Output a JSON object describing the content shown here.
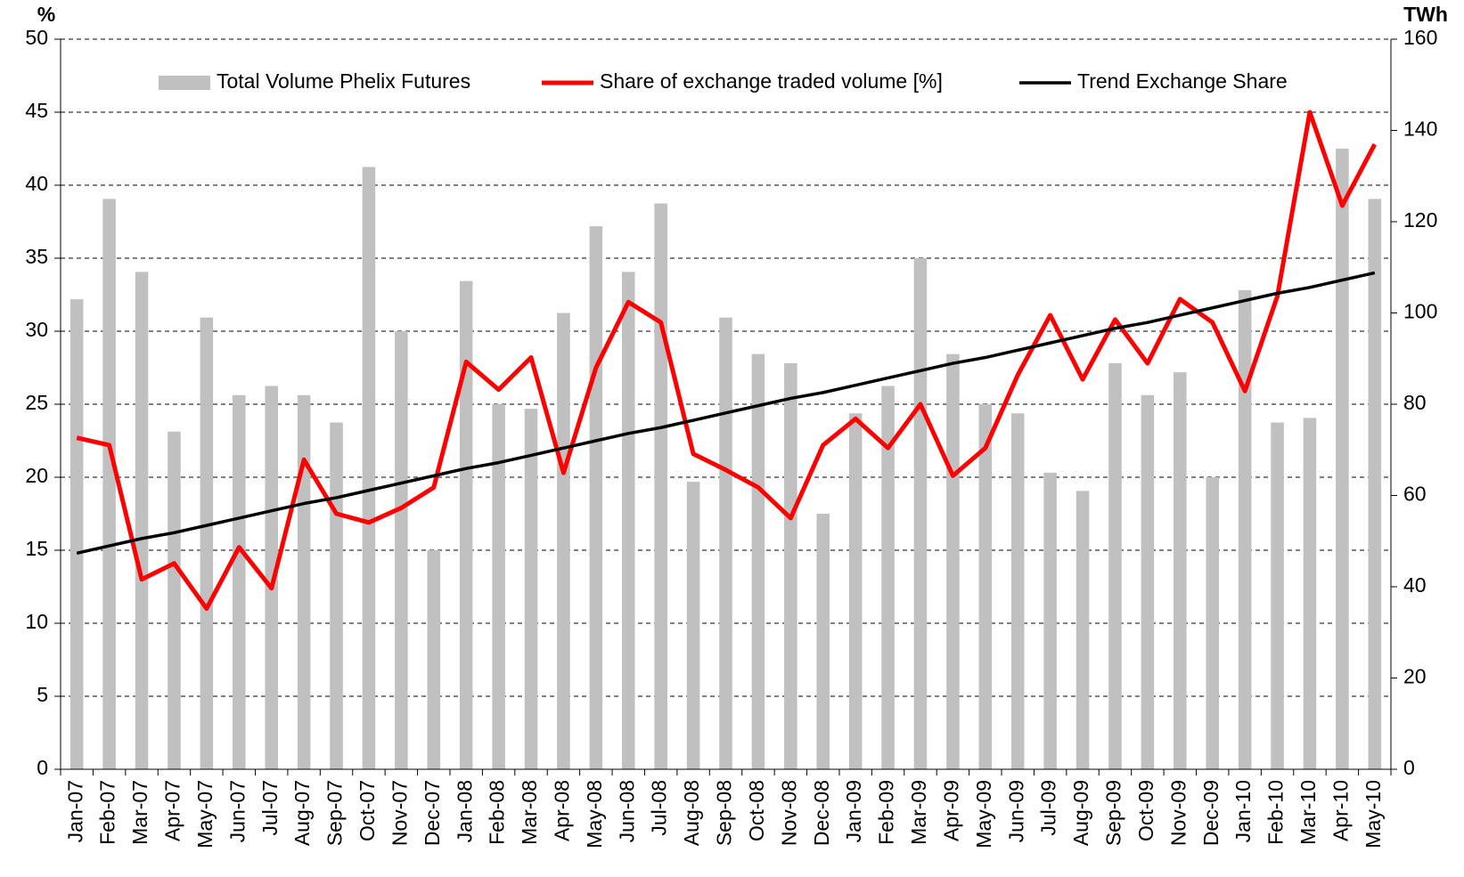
{
  "chart_data": {
    "type": "bar_line",
    "y_label": "%",
    "y2_label": "TWh",
    "categories": [
      "Jan-07",
      "Feb-07",
      "Mar-07",
      "Apr-07",
      "May-07",
      "Jun-07",
      "Jul-07",
      "Aug-07",
      "Sep-07",
      "Oct-07",
      "Nov-07",
      "Dec-07",
      "Jan-08",
      "Feb-08",
      "Mar-08",
      "Apr-08",
      "May-08",
      "Jun-08",
      "Jul-08",
      "Aug-08",
      "Sep-08",
      "Oct-08",
      "Nov-08",
      "Dec-08",
      "Jan-09",
      "Feb-09",
      "Mar-09",
      "Apr-09",
      "May-09",
      "Jun-09",
      "Jul-09",
      "Aug-09",
      "Sep-09",
      "Oct-09",
      "Nov-09",
      "Dec-09",
      "Jan-10",
      "Feb-10",
      "Mar-10",
      "Apr-10",
      "May-10"
    ],
    "series": [
      {
        "name": "Total Volume Phelix Futures",
        "type": "bar",
        "axis": "y2",
        "color": "#c0c0c0",
        "values": [
          103,
          125,
          109,
          74,
          99,
          82,
          84,
          82,
          76,
          132,
          96,
          48,
          107,
          80,
          79,
          100,
          119,
          109,
          124,
          63,
          99,
          91,
          89,
          56,
          78,
          84,
          112,
          91,
          80,
          78,
          65,
          61,
          89,
          82,
          87,
          64,
          105,
          76,
          77,
          136,
          125
        ]
      },
      {
        "name": "Share of exchange traded volume [%]",
        "type": "line",
        "axis": "y",
        "color": "#ff0000",
        "values": [
          22.7,
          22.2,
          13,
          14.1,
          11,
          15.2,
          12.4,
          21.2,
          17.5,
          16.9,
          17.9,
          19.3,
          27.9,
          26,
          28.2,
          20.3,
          27.5,
          32,
          30.6,
          21.6,
          20.5,
          19.3,
          17.2,
          22.2,
          24,
          22,
          25,
          20.1,
          22,
          27,
          31.1,
          26.7,
          30.8,
          27.8,
          32.2,
          30.6,
          25.9,
          32.4,
          45,
          38.6,
          42.8
        ]
      },
      {
        "name": "Trend Exchange Share",
        "type": "line",
        "axis": "y",
        "color": "#000000",
        "values": [
          14.8,
          15.3,
          15.8,
          16.2,
          16.7,
          17.2,
          17.7,
          18.2,
          18.6,
          19.1,
          19.6,
          20.1,
          20.6,
          21,
          21.5,
          22,
          22.5,
          23,
          23.4,
          23.9,
          24.4,
          24.9,
          25.4,
          25.8,
          26.3,
          26.8,
          27.3,
          27.8,
          28.2,
          28.7,
          29.2,
          29.7,
          30.2,
          30.6,
          31.1,
          31.6,
          32.1,
          32.6,
          33,
          33.5,
          34
        ]
      }
    ],
    "ylim": [
      0,
      50
    ],
    "yticks": [
      0,
      5,
      10,
      15,
      20,
      25,
      30,
      35,
      40,
      45,
      50
    ],
    "y2lim": [
      0,
      160
    ],
    "y2ticks": [
      0,
      20,
      40,
      60,
      80,
      100,
      120,
      140,
      160
    ],
    "grid": true,
    "legend": "top"
  }
}
